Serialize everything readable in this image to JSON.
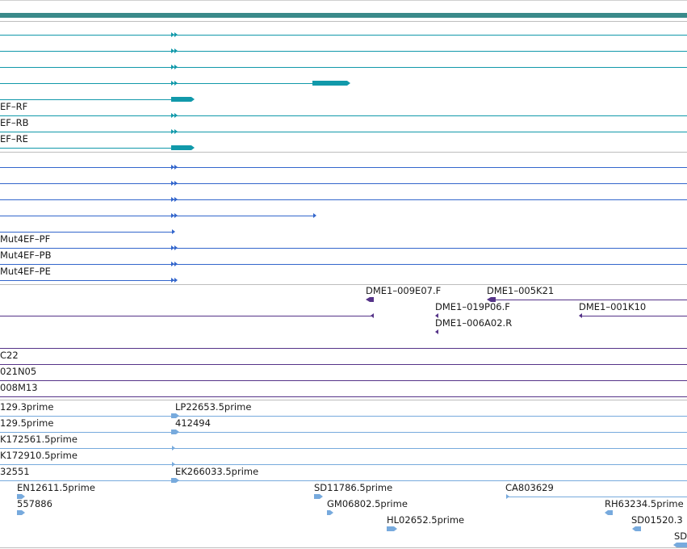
{
  "colors": {
    "header_bar": "#3a8a8a",
    "transcript": "#1199aa",
    "protein": "#3366cc",
    "clone": "#553388",
    "est": "#77aadd",
    "separator": "#bdbdbd"
  },
  "tracks": {
    "transcripts": [
      {
        "label": ""
      },
      {
        "label": ""
      },
      {
        "label": ""
      },
      {
        "label": ""
      },
      {
        "label": ""
      },
      {
        "label": "EF–RF"
      },
      {
        "label": "EF–RB"
      },
      {
        "label": "EF–RE"
      }
    ],
    "proteins": [
      {
        "label": ""
      },
      {
        "label": ""
      },
      {
        "label": ""
      },
      {
        "label": ""
      },
      {
        "label": "Mut4EF–PF"
      },
      {
        "label": "Mut4EF–PB"
      },
      {
        "label": "Mut4EF–PE"
      }
    ],
    "clones_top": [
      {
        "label": "DME1–009E07.F"
      },
      {
        "label": "DME1–005K21"
      },
      {
        "label": "DME1–019P06.F"
      },
      {
        "label": "DME1–001K10"
      },
      {
        "label": "DME1–006A02.R"
      }
    ],
    "clones_bottom": [
      {
        "label": "C22"
      },
      {
        "label": "021N05"
      },
      {
        "label": "008M13"
      }
    ],
    "ests": [
      {
        "label": "129.3prime"
      },
      {
        "label": "LP22653.5prime"
      },
      {
        "label": "129.5prime"
      },
      {
        "label": "412494"
      },
      {
        "label": "K172561.5prime"
      },
      {
        "label": "K172910.5prime"
      },
      {
        "label": "32551"
      },
      {
        "label": "EK266033.5prime"
      },
      {
        "label": "EN12611.5prime"
      },
      {
        "label": "SD11786.5prime"
      },
      {
        "label": "CA803629"
      },
      {
        "label": "557886"
      },
      {
        "label": "GM06802.5prime"
      },
      {
        "label": "RH63234.5prime"
      },
      {
        "label": "HL02652.5prime"
      },
      {
        "label": "SD01520.3"
      },
      {
        "label": "SD"
      }
    ]
  }
}
